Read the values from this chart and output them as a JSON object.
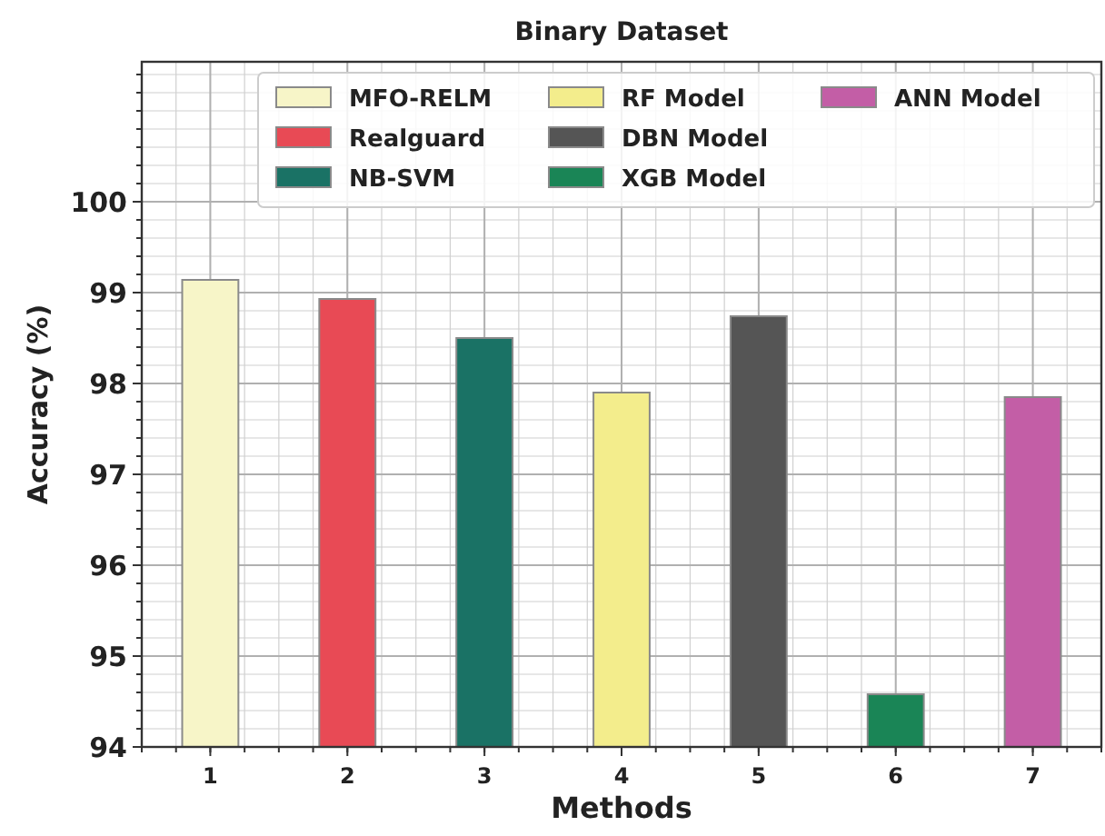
{
  "chart_data": {
    "type": "bar",
    "title": "Binary Dataset",
    "xlabel": "Methods",
    "ylabel": "Accuracy (%)",
    "xlim": [
      0.5,
      7.5
    ],
    "xticks": [
      1,
      2,
      3,
      4,
      5,
      6,
      7
    ],
    "ylim": [
      94,
      101.54
    ],
    "yticks": [
      94,
      95,
      96,
      97,
      98,
      99,
      100
    ],
    "grid": true,
    "legend": "top right",
    "series": [
      {
        "name": "MFO-RELM",
        "color": "#f7f5c8",
        "x": [
          1
        ],
        "values": [
          99.14
        ]
      },
      {
        "name": "Realguard",
        "color": "#e84a55",
        "x": [
          2
        ],
        "values": [
          98.93
        ]
      },
      {
        "name": "NB-SVM",
        "color": "#1a7265",
        "x": [
          3
        ],
        "values": [
          98.5
        ]
      },
      {
        "name": "RF Model",
        "color": "#f3ed8c",
        "x": [
          4
        ],
        "values": [
          97.9
        ]
      },
      {
        "name": "DBN Model",
        "color": "#555555",
        "x": [
          5
        ],
        "values": [
          98.74
        ]
      },
      {
        "name": "XGB Model",
        "color": "#1a8556",
        "x": [
          6
        ],
        "values": [
          94.58
        ]
      },
      {
        "name": "ANN Model",
        "color": "#c35ea6",
        "x": [
          7
        ],
        "values": [
          97.85
        ]
      }
    ]
  }
}
